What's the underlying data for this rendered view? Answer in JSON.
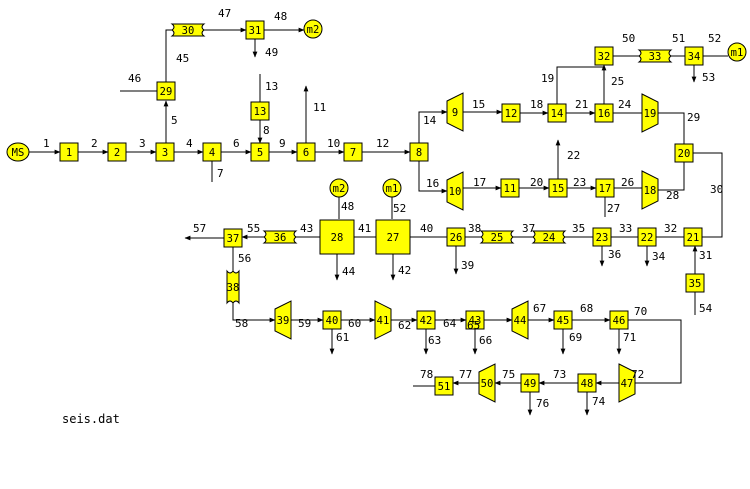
{
  "file_label": "seis.dat",
  "colors": {
    "node_fill": "#ffff00",
    "stroke": "#000000",
    "background": "#ffffff"
  },
  "nodes": [
    {
      "id": "1",
      "shape": "square"
    },
    {
      "id": "2",
      "shape": "square"
    },
    {
      "id": "3",
      "shape": "square"
    },
    {
      "id": "4",
      "shape": "square"
    },
    {
      "id": "5",
      "shape": "square"
    },
    {
      "id": "6",
      "shape": "square"
    },
    {
      "id": "7",
      "shape": "square"
    },
    {
      "id": "8",
      "shape": "square"
    },
    {
      "id": "9",
      "shape": "turbine"
    },
    {
      "id": "10",
      "shape": "turbine"
    },
    {
      "id": "11",
      "shape": "square"
    },
    {
      "id": "12",
      "shape": "square"
    },
    {
      "id": "13",
      "shape": "square"
    },
    {
      "id": "14",
      "shape": "square"
    },
    {
      "id": "15",
      "shape": "square"
    },
    {
      "id": "16",
      "shape": "square"
    },
    {
      "id": "17",
      "shape": "square"
    },
    {
      "id": "18",
      "shape": "compressor"
    },
    {
      "id": "19",
      "shape": "compressor"
    },
    {
      "id": "20",
      "shape": "square"
    },
    {
      "id": "21",
      "shape": "square"
    },
    {
      "id": "22",
      "shape": "square"
    },
    {
      "id": "23",
      "shape": "square"
    },
    {
      "id": "24",
      "shape": "pipe"
    },
    {
      "id": "25",
      "shape": "pipe"
    },
    {
      "id": "26",
      "shape": "square"
    },
    {
      "id": "27",
      "shape": "big_square"
    },
    {
      "id": "28",
      "shape": "big_square"
    },
    {
      "id": "29",
      "shape": "square"
    },
    {
      "id": "30",
      "shape": "pipe"
    },
    {
      "id": "31",
      "shape": "square"
    },
    {
      "id": "32",
      "shape": "square"
    },
    {
      "id": "33",
      "shape": "pipe"
    },
    {
      "id": "34",
      "shape": "square"
    },
    {
      "id": "35",
      "shape": "square"
    },
    {
      "id": "36",
      "shape": "pipe"
    },
    {
      "id": "37",
      "shape": "square"
    },
    {
      "id": "38",
      "shape": "pipe_vertical"
    },
    {
      "id": "39",
      "shape": "turbine"
    },
    {
      "id": "40",
      "shape": "square"
    },
    {
      "id": "41",
      "shape": "compressor"
    },
    {
      "id": "42",
      "shape": "square"
    },
    {
      "id": "43",
      "shape": "square"
    },
    {
      "id": "44",
      "shape": "turbine"
    },
    {
      "id": "45",
      "shape": "square"
    },
    {
      "id": "46",
      "shape": "square"
    },
    {
      "id": "47",
      "shape": "compressor"
    },
    {
      "id": "48",
      "shape": "square"
    },
    {
      "id": "49",
      "shape": "square"
    },
    {
      "id": "50",
      "shape": "turbine"
    },
    {
      "id": "51",
      "shape": "square"
    }
  ],
  "circles": [
    {
      "id": "source",
      "label": "MS"
    },
    {
      "id": "m2_top",
      "label": "m2"
    },
    {
      "id": "m1_top",
      "label": "m1"
    },
    {
      "id": "m2_mid",
      "label": "m2"
    },
    {
      "id": "m1_mid",
      "label": "m1"
    }
  ],
  "stream_labels": [
    "1",
    "2",
    "3",
    "4",
    "5",
    "6",
    "7",
    "8",
    "9",
    "10",
    "11",
    "12",
    "13",
    "14",
    "15",
    "16",
    "17",
    "18",
    "19",
    "20",
    "21",
    "22",
    "23",
    "24",
    "25",
    "26",
    "27",
    "28",
    "29",
    "30",
    "31",
    "32",
    "33",
    "34",
    "35",
    "36",
    "37",
    "38",
    "39",
    "40",
    "41",
    "42",
    "43",
    "44",
    "45",
    "46",
    "47",
    "48",
    "49",
    "50",
    "51",
    "52",
    "53",
    "54",
    "55",
    "56",
    "57",
    "58",
    "59",
    "60",
    "61",
    "62",
    "63",
    "64",
    "65",
    "66",
    "67",
    "68",
    "69",
    "70",
    "71",
    "72",
    "73",
    "74",
    "75",
    "76",
    "77",
    "78",
    "48",
    "52"
  ]
}
